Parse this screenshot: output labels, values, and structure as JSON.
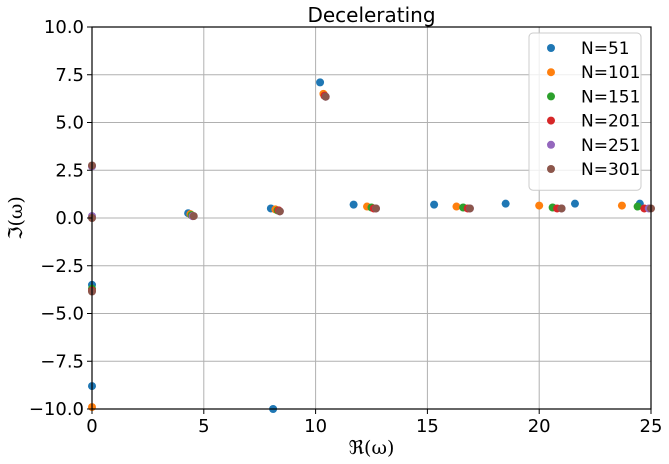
{
  "chart_data": {
    "type": "scatter",
    "title": "Decelerating",
    "xlabel": "ℜ(ω)",
    "ylabel": "ℑ(ω)",
    "xlim": [
      0,
      25
    ],
    "ylim": [
      -10,
      10
    ],
    "xticks": [
      0,
      5,
      10,
      15,
      20,
      25
    ],
    "xtick_labels": [
      "0",
      "5",
      "10",
      "15",
      "20",
      "25"
    ],
    "yticks": [
      -10,
      -7.5,
      -5,
      -2.5,
      0,
      2.5,
      5,
      7.5,
      10
    ],
    "ytick_labels": [
      "−10.0",
      "−7.5",
      "−5.0",
      "−2.5",
      "0.0",
      "2.5",
      "5.0",
      "7.5",
      "10.0"
    ],
    "grid": true,
    "legend_position": "top-right",
    "series": [
      {
        "name": "N=51",
        "color": "#1f77b4",
        "points": [
          [
            0,
            -3.5
          ],
          [
            0,
            -8.8
          ],
          [
            4.3,
            0.25
          ],
          [
            8.0,
            0.5
          ],
          [
            8.1,
            -10.0
          ],
          [
            10.2,
            7.1
          ],
          [
            11.7,
            0.7
          ],
          [
            15.3,
            0.7
          ],
          [
            18.5,
            0.75
          ],
          [
            21.6,
            0.75
          ],
          [
            24.5,
            0.75
          ]
        ]
      },
      {
        "name": "N=101",
        "color": "#ff7f0e",
        "points": [
          [
            0,
            -9.9
          ],
          [
            4.4,
            0.2
          ],
          [
            8.2,
            0.45
          ],
          [
            10.35,
            6.5
          ],
          [
            12.3,
            0.6
          ],
          [
            16.3,
            0.6
          ],
          [
            20.0,
            0.65
          ],
          [
            23.7,
            0.65
          ]
        ]
      },
      {
        "name": "N=151",
        "color": "#2ca02c",
        "points": [
          [
            0,
            -3.7
          ],
          [
            4.45,
            0.15
          ],
          [
            8.3,
            0.4
          ],
          [
            10.4,
            6.4
          ],
          [
            12.5,
            0.55
          ],
          [
            16.6,
            0.55
          ],
          [
            20.6,
            0.55
          ],
          [
            24.4,
            0.6
          ]
        ]
      },
      {
        "name": "N=201",
        "color": "#d62728",
        "points": [
          [
            0,
            -3.8
          ],
          [
            4.5,
            0.1
          ],
          [
            8.35,
            0.4
          ],
          [
            10.4,
            6.4
          ],
          [
            12.6,
            0.5
          ],
          [
            16.8,
            0.5
          ],
          [
            20.8,
            0.5
          ],
          [
            24.7,
            0.5
          ]
        ]
      },
      {
        "name": "N=251",
        "color": "#9467bd",
        "points": [
          [
            0,
            2.7
          ],
          [
            0,
            0.1
          ],
          [
            4.5,
            0.1
          ],
          [
            8.4,
            0.35
          ],
          [
            10.45,
            6.35
          ],
          [
            12.7,
            0.5
          ],
          [
            16.9,
            0.5
          ],
          [
            21.0,
            0.5
          ],
          [
            24.9,
            0.5
          ]
        ]
      },
      {
        "name": "N=301",
        "color": "#8c564b",
        "points": [
          [
            0,
            2.75
          ],
          [
            0,
            0.0
          ],
          [
            0,
            -3.85
          ],
          [
            4.55,
            0.1
          ],
          [
            8.4,
            0.35
          ],
          [
            10.45,
            6.35
          ],
          [
            12.7,
            0.5
          ],
          [
            16.9,
            0.5
          ],
          [
            21.0,
            0.5
          ],
          [
            25.0,
            0.5
          ]
        ]
      }
    ]
  }
}
